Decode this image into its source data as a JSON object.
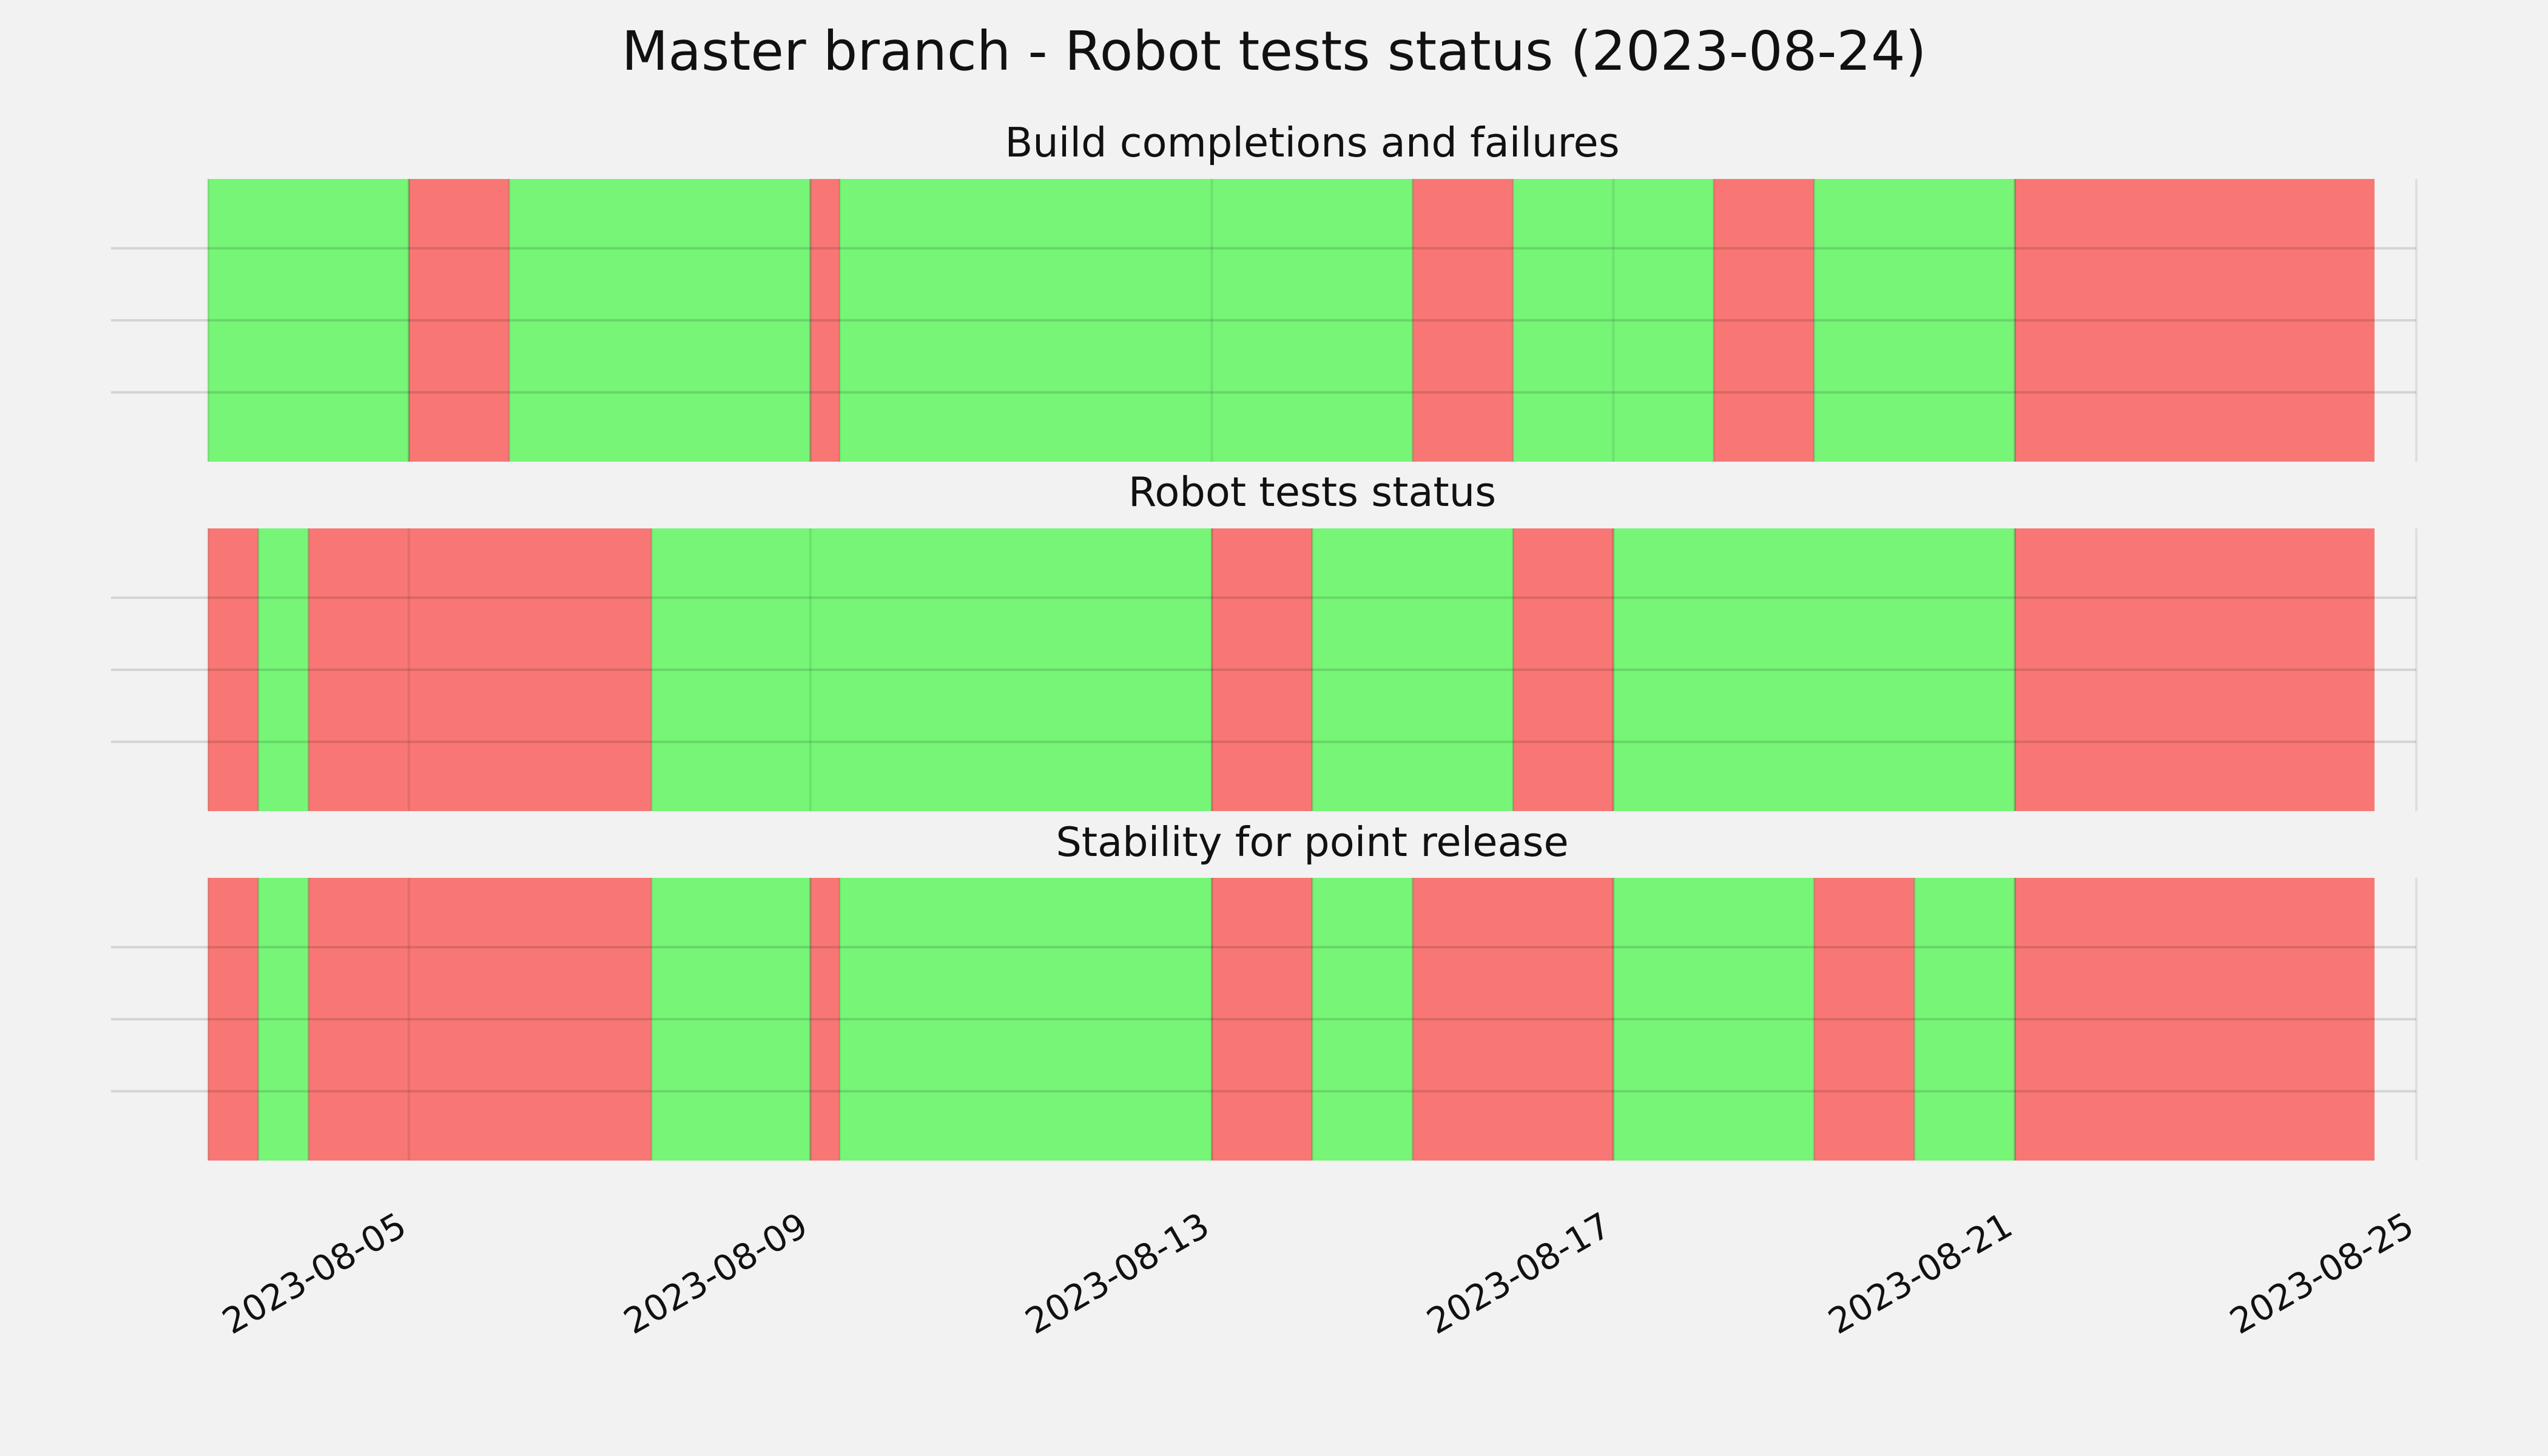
{
  "chart_data": {
    "type": "timeline",
    "title": "Master branch - Robot tests status (2023-08-24)",
    "xlim": [
      "2023-08-03",
      "2023-08-25"
    ],
    "grid": true,
    "colors": {
      "pass": "#76f577",
      "fail": "#f87774",
      "background": "#f2f2f2",
      "grid": "#cccccc"
    },
    "x_ticks": [
      "2023-08-05",
      "2023-08-09",
      "2023-08-13",
      "2023-08-17",
      "2023-08-21",
      "2023-08-25"
    ],
    "panels": [
      {
        "title": "Build completions and failures",
        "segments": [
          {
            "start": "2023-08-03 00:00",
            "end": "2023-08-05 00:00",
            "status": "pass"
          },
          {
            "start": "2023-08-05 00:00",
            "end": "2023-08-06 00:00",
            "status": "fail"
          },
          {
            "start": "2023-08-06 00:00",
            "end": "2023-08-09 00:00",
            "status": "pass"
          },
          {
            "start": "2023-08-09 00:00",
            "end": "2023-08-09 07:00",
            "status": "fail"
          },
          {
            "start": "2023-08-09 07:00",
            "end": "2023-08-15 00:00",
            "status": "pass"
          },
          {
            "start": "2023-08-15 00:00",
            "end": "2023-08-16 00:00",
            "status": "fail"
          },
          {
            "start": "2023-08-16 00:00",
            "end": "2023-08-18 00:00",
            "status": "pass"
          },
          {
            "start": "2023-08-18 00:00",
            "end": "2023-08-19 00:00",
            "status": "fail"
          },
          {
            "start": "2023-08-19 00:00",
            "end": "2023-08-21 00:00",
            "status": "pass"
          },
          {
            "start": "2023-08-21 00:00",
            "end": "2023-08-24 14:00",
            "status": "fail"
          }
        ]
      },
      {
        "title": "Robot tests status",
        "segments": [
          {
            "start": "2023-08-03 00:00",
            "end": "2023-08-03 12:00",
            "status": "fail"
          },
          {
            "start": "2023-08-03 12:00",
            "end": "2023-08-04 00:00",
            "status": "pass"
          },
          {
            "start": "2023-08-04 00:00",
            "end": "2023-08-07 10:00",
            "status": "fail"
          },
          {
            "start": "2023-08-07 10:00",
            "end": "2023-08-13 00:00",
            "status": "pass"
          },
          {
            "start": "2023-08-13 00:00",
            "end": "2023-08-14 00:00",
            "status": "fail"
          },
          {
            "start": "2023-08-14 00:00",
            "end": "2023-08-16 00:00",
            "status": "pass"
          },
          {
            "start": "2023-08-16 00:00",
            "end": "2023-08-17 00:00",
            "status": "fail"
          },
          {
            "start": "2023-08-17 00:00",
            "end": "2023-08-21 00:00",
            "status": "pass"
          },
          {
            "start": "2023-08-21 00:00",
            "end": "2023-08-24 14:00",
            "status": "fail"
          }
        ]
      },
      {
        "title": "Stability for point release",
        "segments": [
          {
            "start": "2023-08-03 00:00",
            "end": "2023-08-03 12:00",
            "status": "fail"
          },
          {
            "start": "2023-08-03 12:00",
            "end": "2023-08-04 00:00",
            "status": "pass"
          },
          {
            "start": "2023-08-04 00:00",
            "end": "2023-08-07 10:00",
            "status": "fail"
          },
          {
            "start": "2023-08-07 10:00",
            "end": "2023-08-09 00:00",
            "status": "pass"
          },
          {
            "start": "2023-08-09 00:00",
            "end": "2023-08-09 07:00",
            "status": "fail"
          },
          {
            "start": "2023-08-09 07:00",
            "end": "2023-08-13 00:00",
            "status": "pass"
          },
          {
            "start": "2023-08-13 00:00",
            "end": "2023-08-14 00:00",
            "status": "fail"
          },
          {
            "start": "2023-08-14 00:00",
            "end": "2023-08-15 00:00",
            "status": "pass"
          },
          {
            "start": "2023-08-15 00:00",
            "end": "2023-08-17 00:00",
            "status": "fail"
          },
          {
            "start": "2023-08-17 00:00",
            "end": "2023-08-19 00:00",
            "status": "pass"
          },
          {
            "start": "2023-08-19 00:00",
            "end": "2023-08-20 00:00",
            "status": "fail"
          },
          {
            "start": "2023-08-20 00:00",
            "end": "2023-08-21 00:00",
            "status": "pass"
          },
          {
            "start": "2023-08-21 00:00",
            "end": "2023-08-24 14:00",
            "status": "fail"
          }
        ]
      }
    ]
  }
}
